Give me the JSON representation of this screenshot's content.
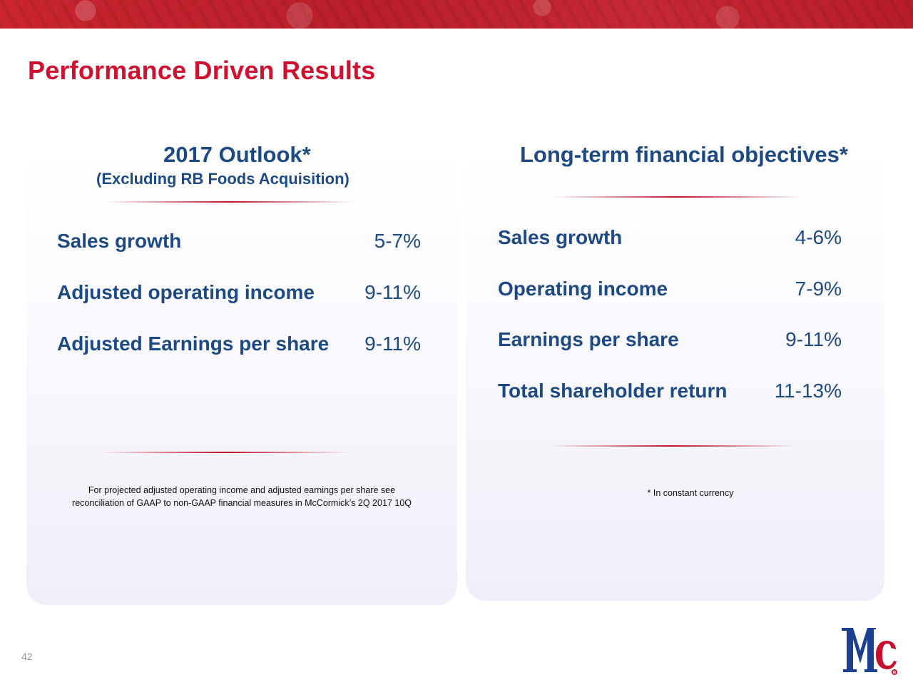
{
  "slide": {
    "title": "Performance Driven Results",
    "page_number": "42"
  },
  "left": {
    "heading": "2017 Outlook*",
    "subheading": "(Excluding RB Foods Acquisition)",
    "metrics": [
      {
        "label": "Sales growth",
        "value": "5-7%"
      },
      {
        "label": "Adjusted operating income",
        "value": "9-11%"
      },
      {
        "label": "Adjusted Earnings per share",
        "value": "9-11%"
      }
    ],
    "note_line1": "For projected adjusted operating income and adjusted earnings per share see",
    "note_line2": "reconciliation of GAAP to non-GAAP financial measures in McCormick’s 2Q 2017 10Q"
  },
  "right": {
    "heading": "Long-term financial objectives*",
    "metrics": [
      {
        "label": "Sales growth",
        "value": "4-6%"
      },
      {
        "label": "Operating income",
        "value": "7-9%"
      },
      {
        "label": "Earnings per share",
        "value": "9-11%"
      },
      {
        "label": "Total shareholder return",
        "value": "11-13%"
      }
    ],
    "note": "* In constant currency"
  },
  "colors": {
    "title_red": "#d0102e",
    "text_blue": "#1e4a83",
    "logo_blue": "#1d3f8f",
    "logo_red": "#c8102e"
  },
  "logo": {
    "name": "mccormick-logo"
  }
}
